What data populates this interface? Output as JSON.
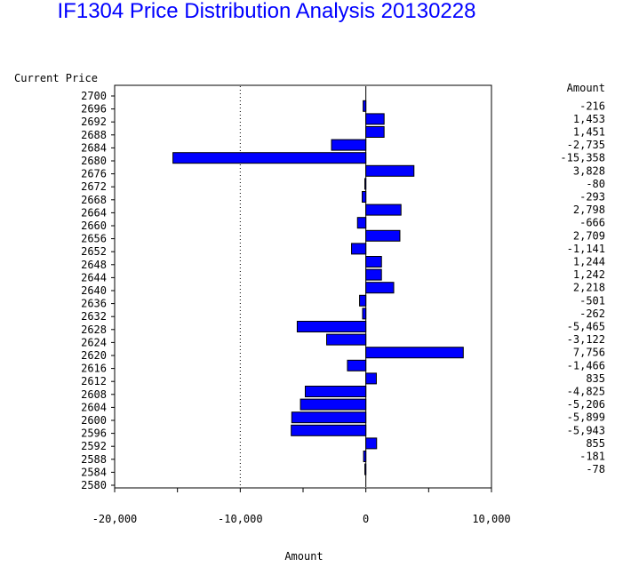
{
  "title": "IF1304 Price Distribution Analysis  20130228",
  "y_axis_header": "Current Price",
  "x_axis_label": "Amount",
  "value_column_header": "Amount",
  "colors": {
    "bar_fill": "#0000ff",
    "bar_stroke": "#000000",
    "title": "#0000ff",
    "text": "#000000"
  },
  "chart_data": {
    "type": "bar",
    "orientation": "horizontal",
    "title": "IF1304 Price Distribution Analysis  20130228",
    "xlabel": "Amount",
    "ylabel": "Current Price",
    "xlim": [
      -20000,
      10000
    ],
    "xticks": [
      -20000,
      -10000,
      0,
      10000
    ],
    "xtick_labels": [
      "-20,000",
      "-10,000",
      "0",
      "10,000"
    ],
    "grid": "dotted vertical reference lines at -10,000 and 10,000",
    "y_tick_labels": [
      "2700",
      "2696",
      "2692",
      "2688",
      "2684",
      "2680",
      "2676",
      "2672",
      "2668",
      "2664",
      "2660",
      "2656",
      "2652",
      "2648",
      "2644",
      "2640",
      "2636",
      "2632",
      "2628",
      "2624",
      "2620",
      "2616",
      "2612",
      "2608",
      "2604",
      "2600",
      "2596",
      "2592",
      "2588",
      "2584",
      "2580"
    ],
    "categories": [
      "2696",
      "2692",
      "2688",
      "2684",
      "2680",
      "2676",
      "2672",
      "2668",
      "2664",
      "2660",
      "2656",
      "2652",
      "2648",
      "2644",
      "2640",
      "2636",
      "2632",
      "2628",
      "2624",
      "2620",
      "2616",
      "2612",
      "2608",
      "2604",
      "2600",
      "2596",
      "2592",
      "2588",
      "2584"
    ],
    "values": [
      -216,
      1453,
      1451,
      -2735,
      -15358,
      3828,
      -80,
      -293,
      2798,
      -666,
      2709,
      -1141,
      1244,
      1242,
      2218,
      -501,
      -262,
      -5465,
      -3122,
      7756,
      -1466,
      835,
      -4825,
      -5206,
      -5899,
      -5943,
      855,
      -181,
      -78
    ],
    "value_labels": [
      "-216",
      "1,453",
      "1,451",
      "-2,735",
      "-15,358",
      "3,828",
      "-80",
      "-293",
      "2,798",
      "-666",
      "2,709",
      "-1,141",
      "1,244",
      "1,242",
      "2,218",
      "-501",
      "-262",
      "-5,465",
      "-3,122",
      "7,756",
      "-1,466",
      "835",
      "-4,825",
      "-5,206",
      "-5,899",
      "-5,943",
      "855",
      "-181",
      "-78"
    ]
  }
}
